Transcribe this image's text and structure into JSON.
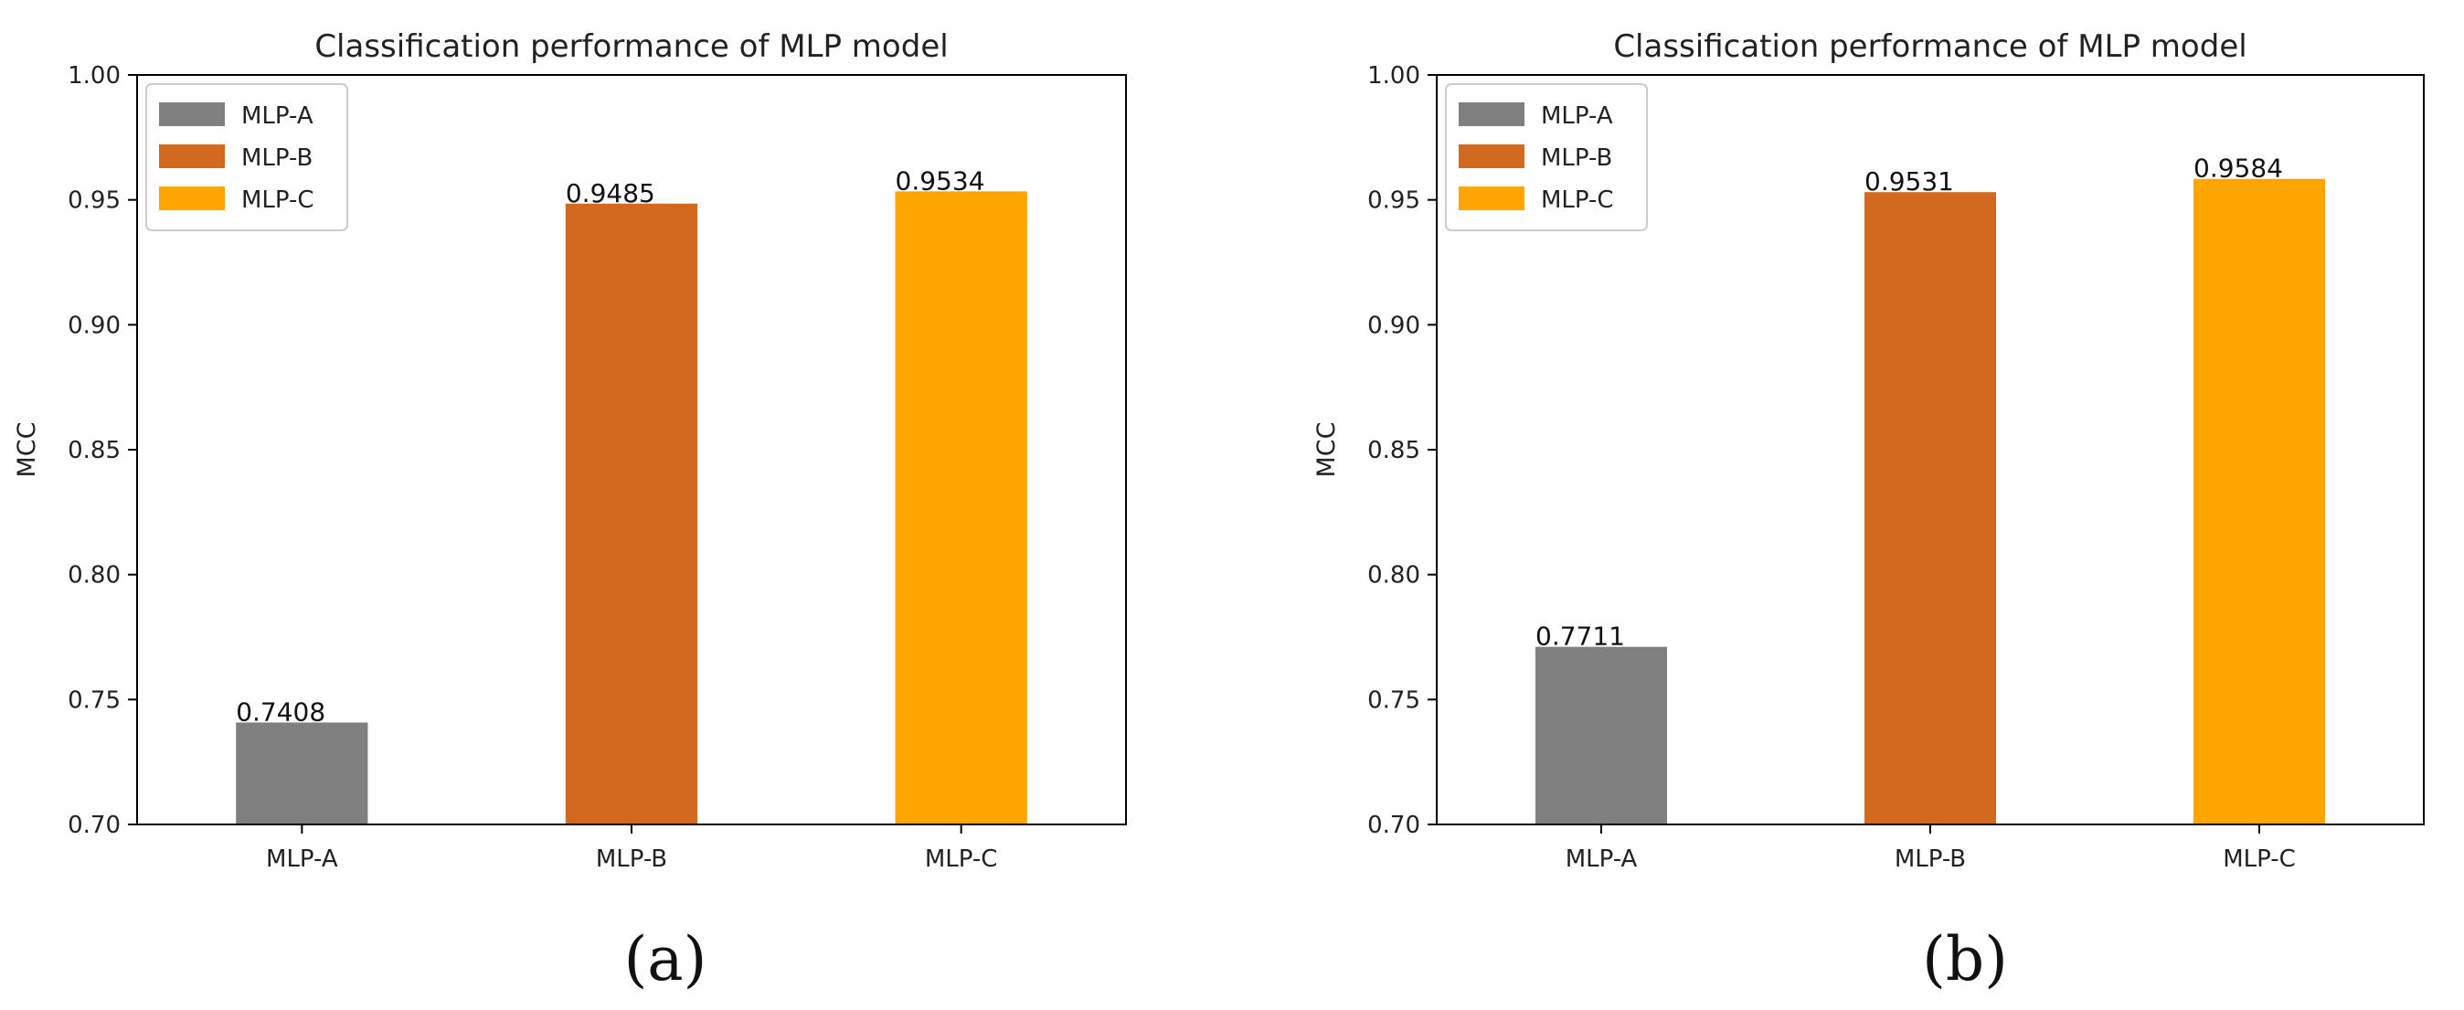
{
  "chart_data": [
    {
      "type": "bar",
      "title": "Classification performance of MLP model",
      "xlabel": "",
      "ylabel": "MCC",
      "ylim": [
        0.7,
        1.0
      ],
      "yticks": [
        "0.70",
        "0.75",
        "0.80",
        "0.85",
        "0.90",
        "0.95",
        "1.00"
      ],
      "categories": [
        "MLP-A",
        "MLP-B",
        "MLP-C"
      ],
      "values": [
        0.7408,
        0.9485,
        0.9534
      ],
      "value_labels": [
        "0.7408",
        "0.9485",
        "0.9534"
      ],
      "colors": [
        "#808080",
        "#d2691e",
        "#ffa500"
      ],
      "legend": [
        "MLP-A",
        "MLP-B",
        "MLP-C"
      ],
      "legend_position": "upper-left",
      "grid": false,
      "panel_label": "(a)"
    },
    {
      "type": "bar",
      "title": "Classification performance of MLP model",
      "xlabel": "",
      "ylabel": "MCC",
      "ylim": [
        0.7,
        1.0
      ],
      "yticks": [
        "0.70",
        "0.75",
        "0.80",
        "0.85",
        "0.90",
        "0.95",
        "1.00"
      ],
      "categories": [
        "MLP-A",
        "MLP-B",
        "MLP-C"
      ],
      "values": [
        0.7711,
        0.9531,
        0.9584
      ],
      "value_labels": [
        "0.7711",
        "0.9531",
        "0.9584"
      ],
      "colors": [
        "#808080",
        "#d2691e",
        "#ffa500"
      ],
      "legend": [
        "MLP-A",
        "MLP-B",
        "MLP-C"
      ],
      "legend_position": "upper-left",
      "grid": false,
      "panel_label": "(b)"
    }
  ]
}
